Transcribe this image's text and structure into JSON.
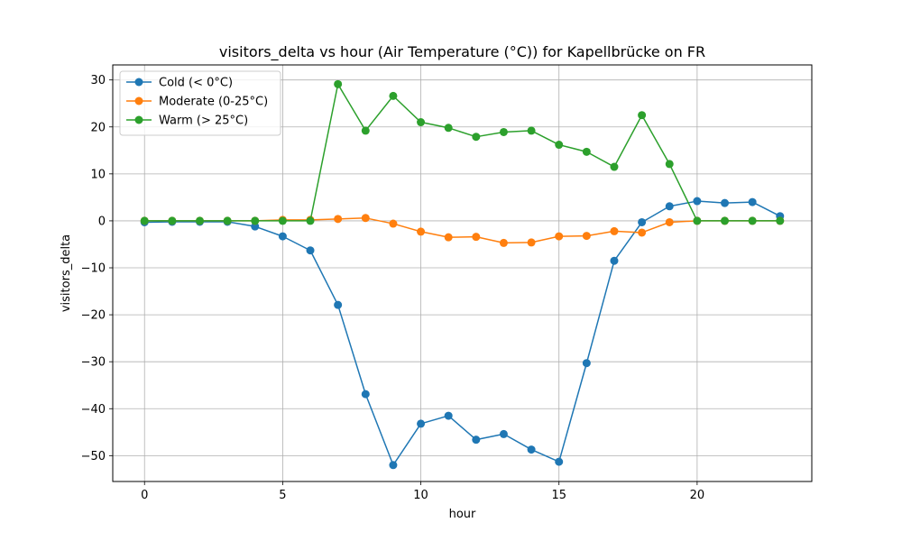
{
  "chart_data": {
    "type": "line",
    "title": "visitors_delta vs hour (Air Temperature (°C)) for Kapellbrücke on FR",
    "xlabel": "hour",
    "ylabel": "visitors_delta",
    "xlim": [
      -1.15,
      24.15
    ],
    "ylim": [
      -55.5,
      33.2
    ],
    "xticks": [
      0,
      5,
      10,
      15,
      20
    ],
    "yticks": [
      -50,
      -40,
      -30,
      -20,
      -10,
      0,
      10,
      20,
      30
    ],
    "ytick_labels": [
      "−50",
      "−40",
      "−30",
      "−20",
      "−10",
      "0",
      "10",
      "20",
      "30"
    ],
    "grid": true,
    "legend_position": "top-left",
    "x": [
      0,
      1,
      2,
      3,
      4,
      5,
      6,
      7,
      8,
      9,
      10,
      11,
      12,
      13,
      14,
      15,
      16,
      17,
      18,
      19,
      20,
      21,
      22,
      23
    ],
    "series": [
      {
        "name": "Cold (< 0°C)",
        "color": "#1f77b4",
        "values": [
          -0.3,
          -0.2,
          -0.2,
          -0.2,
          -1.2,
          -3.3,
          -6.3,
          -17.9,
          -36.9,
          -52.0,
          -43.2,
          -41.5,
          -46.6,
          -45.4,
          -48.7,
          -51.3,
          -30.3,
          -8.5,
          -0.3,
          3.1,
          4.2,
          3.8,
          4.0,
          1.0
        ]
      },
      {
        "name": "Moderate (0-25°C)",
        "color": "#ff7f0e",
        "values": [
          0.0,
          0.0,
          0.0,
          0.0,
          0.0,
          0.2,
          0.2,
          0.4,
          0.6,
          -0.6,
          -2.3,
          -3.5,
          -3.4,
          -4.7,
          -4.6,
          -3.3,
          -3.2,
          -2.2,
          -2.5,
          -0.3,
          0.0,
          0.0,
          0.0,
          0.0
        ]
      },
      {
        "name": "Warm (> 25°C)",
        "color": "#2ca02c",
        "values": [
          0.0,
          0.0,
          0.0,
          0.0,
          0.0,
          0.0,
          0.0,
          29.1,
          19.2,
          26.6,
          21.0,
          19.8,
          17.9,
          18.9,
          19.2,
          16.2,
          14.7,
          11.5,
          22.5,
          12.1,
          0.0,
          0.0,
          0.0,
          0.0
        ]
      }
    ]
  }
}
